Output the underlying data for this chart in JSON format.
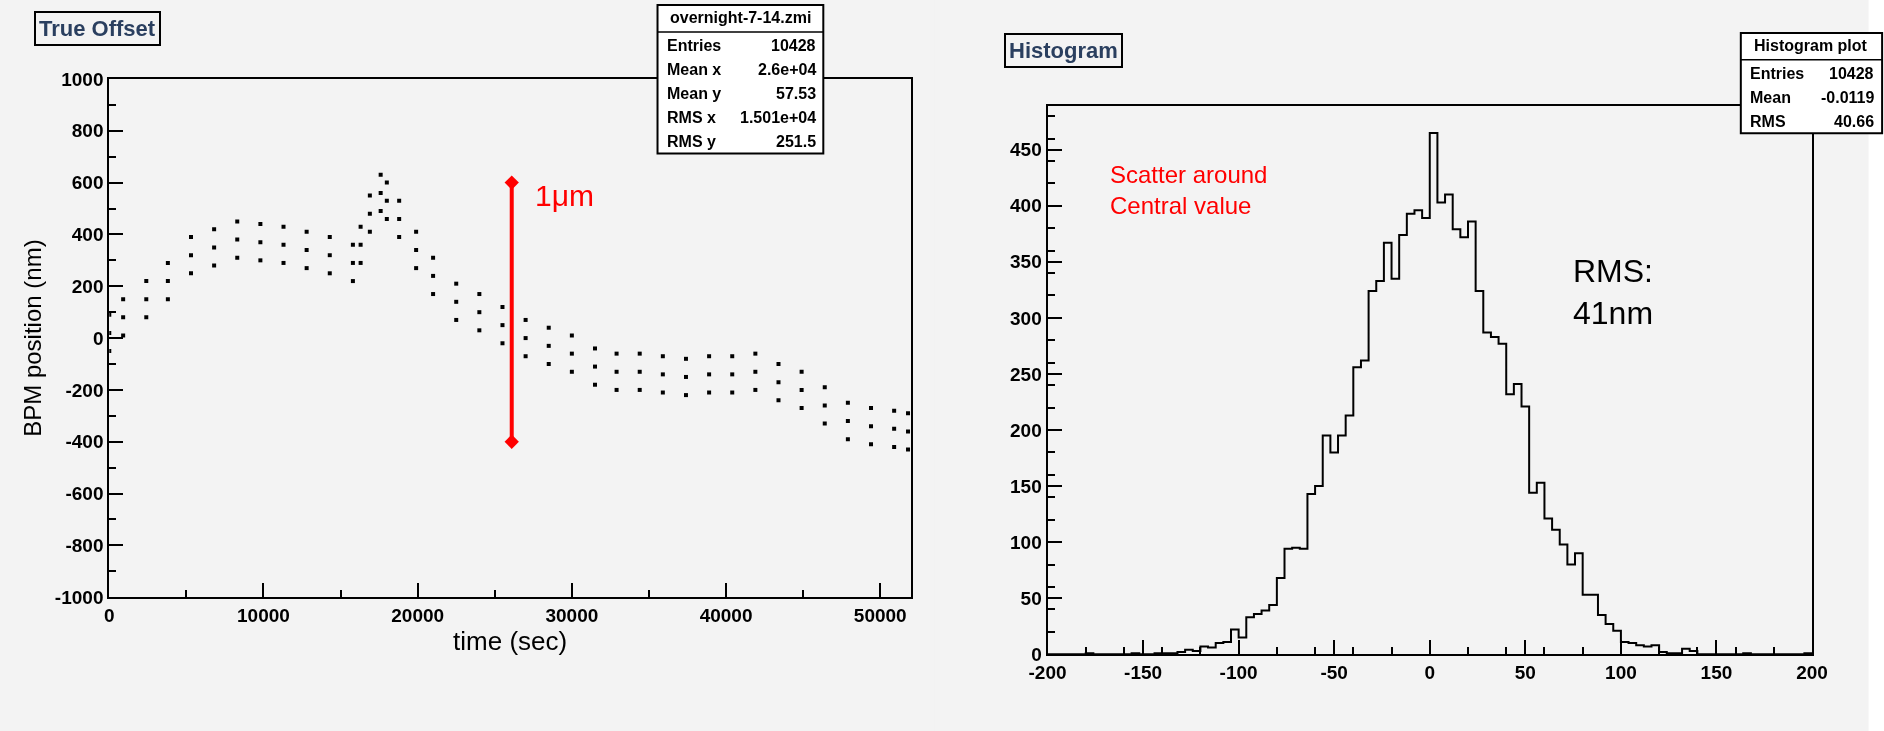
{
  "chart_data": [
    {
      "type": "scatter",
      "title": "True Offset",
      "xlabel": "time (sec)",
      "ylabel": "BPM position (nm)",
      "marker": "square",
      "xlim": [
        0,
        52000
      ],
      "xticks": [
        0,
        10000,
        20000,
        30000,
        40000,
        50000
      ],
      "ylim": [
        -1000,
        1000
      ],
      "yticks": [
        -1000,
        -800,
        -600,
        -400,
        -200,
        0,
        200,
        400,
        600,
        800,
        1000
      ],
      "series": [
        {
          "color": "#000000",
          "x": [
            0,
            0,
            0,
            900,
            900,
            900,
            2400,
            2400,
            2400,
            3800,
            3800,
            3800,
            5300,
            5300,
            5300,
            6800,
            6800,
            6800,
            8300,
            8300,
            8300,
            9800,
            9800,
            9800,
            11300,
            11300,
            11300,
            12800,
            12800,
            12800,
            14300,
            14300,
            14300,
            15800,
            15800,
            15800,
            16300,
            16300,
            16300,
            16900,
            16900,
            16900,
            17600,
            17600,
            17600,
            18000,
            18000,
            18000,
            18800,
            18800,
            18800,
            19900,
            19900,
            19900,
            21000,
            21000,
            21000,
            22500,
            22500,
            22500,
            24000,
            24000,
            24000,
            25500,
            25500,
            25500,
            27000,
            27000,
            27000,
            28500,
            28500,
            28500,
            30000,
            30000,
            30000,
            31500,
            31500,
            31500,
            32900,
            32900,
            32900,
            34400,
            34400,
            34400,
            35900,
            35900,
            35900,
            37400,
            37400,
            37400,
            38900,
            38900,
            38900,
            40400,
            40400,
            40400,
            41900,
            41900,
            41900,
            43400,
            43400,
            43400,
            44900,
            44900,
            44900,
            46400,
            46400,
            46400,
            47900,
            47900,
            47900,
            49400,
            49400,
            49400,
            50900,
            50900,
            50900,
            51800,
            51800,
            51800
          ],
          "values": [
            20,
            90,
            -50,
            80,
            150,
            10,
            150,
            220,
            80,
            220,
            290,
            150,
            320,
            390,
            250,
            350,
            420,
            280,
            380,
            450,
            310,
            370,
            440,
            300,
            360,
            430,
            290,
            340,
            410,
            270,
            320,
            390,
            250,
            290,
            360,
            220,
            360,
            430,
            290,
            480,
            550,
            410,
            560,
            630,
            490,
            530,
            600,
            460,
            460,
            530,
            390,
            340,
            410,
            270,
            240,
            310,
            170,
            140,
            210,
            70,
            100,
            170,
            30,
            50,
            120,
            -20,
            0,
            70,
            -70,
            -30,
            40,
            -100,
            -60,
            10,
            -130,
            -110,
            -40,
            -180,
            -130,
            -60,
            -200,
            -130,
            -60,
            -200,
            -140,
            -70,
            -210,
            -150,
            -80,
            -220,
            -140,
            -70,
            -210,
            -140,
            -70,
            -210,
            -130,
            -60,
            -200,
            -170,
            -100,
            -240,
            -200,
            -130,
            -270,
            -260,
            -190,
            -330,
            -320,
            -250,
            -390,
            -340,
            -270,
            -410,
            -350,
            -280,
            -420,
            -360,
            -290,
            -430
          ]
        },
        {
          "type": "line",
          "color": "#ff0000",
          "marker": "diamond",
          "x": [
            26100,
            26100
          ],
          "values": [
            -400,
            600
          ]
        }
      ],
      "annotations": [
        "1μm",
        "overnight-7-14.zmi\nEntries 10428\nMean x 2.6e+04\nMean y 57.53\nRMS x 1.501e+04\nRMS y 251.5"
      ]
    },
    {
      "type": "histogram",
      "title": "Histogram",
      "xlim": [
        -200,
        200
      ],
      "xticks": [
        -200,
        -150,
        -100,
        -50,
        0,
        50,
        100,
        150,
        200
      ],
      "ylim": [
        0,
        489
      ],
      "yticks": [
        0,
        50,
        100,
        150,
        200,
        250,
        300,
        350,
        400,
        450
      ],
      "bins": [
        -200,
        -196,
        -192,
        -188,
        -184,
        -180,
        -176,
        -172,
        -168,
        -164,
        -160,
        -156,
        -152,
        -148,
        -144,
        -140,
        -136,
        -132,
        -128,
        -124,
        -120,
        -116,
        -112,
        -108,
        -104,
        -100,
        -96,
        -92,
        -88,
        -84,
        -80,
        -76,
        -72,
        -68,
        -64,
        -60,
        -56,
        -52,
        -48,
        -44,
        -40,
        -36,
        -32,
        -28,
        -24,
        -20,
        -16,
        -12,
        -8,
        -4,
        0,
        4,
        8,
        12,
        16,
        20,
        24,
        28,
        32,
        36,
        40,
        44,
        48,
        52,
        56,
        60,
        64,
        68,
        72,
        76,
        80,
        84,
        88,
        92,
        96,
        100,
        104,
        108,
        112,
        116,
        120,
        124,
        128,
        132,
        136,
        140,
        144,
        148,
        152,
        156,
        160,
        164,
        168,
        172,
        176,
        180,
        184,
        188,
        192,
        196,
        200
      ],
      "values": [
        0,
        0,
        0,
        0,
        0,
        1,
        0,
        0,
        0,
        0,
        0,
        1,
        0,
        0,
        1,
        1,
        1,
        2,
        4,
        3,
        7,
        6,
        10,
        11,
        22,
        15,
        33,
        36,
        39,
        44,
        68,
        94,
        95,
        94,
        143,
        150,
        195,
        180,
        195,
        213,
        256,
        262,
        324,
        333,
        367,
        335,
        374,
        393,
        396,
        389,
        465,
        403,
        410,
        379,
        372,
        386,
        324,
        287,
        283,
        277,
        232,
        241,
        221,
        144,
        153,
        121,
        111,
        98,
        80,
        90,
        53,
        53,
        35,
        27,
        21,
        11,
        10,
        8,
        7,
        8,
        2,
        1,
        1,
        5,
        3,
        0,
        0,
        0,
        0,
        0,
        0,
        1,
        0,
        0,
        0,
        0,
        0,
        0,
        0,
        1
      ],
      "color": "#000000",
      "annotations": [
        "Scatter around\nCentral value",
        "RMS:\n41nm",
        "Histogram plot\nEntries 10428\nMean -0.0119\nRMS 40.66"
      ]
    }
  ]
}
